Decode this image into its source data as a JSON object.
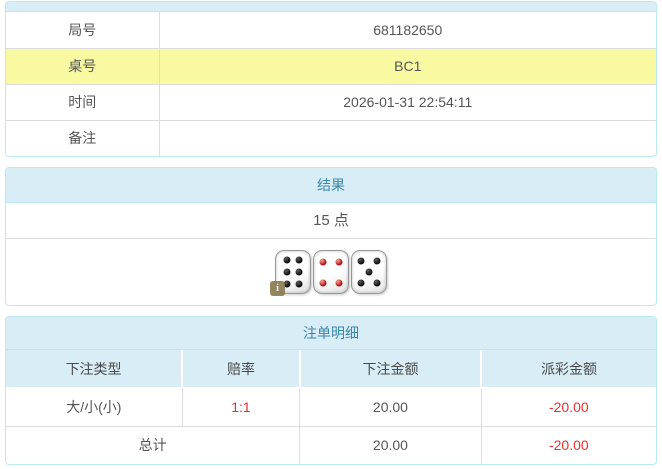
{
  "colors": {
    "accent_blue": "#3a87ad",
    "panel_border": "#bce8f1",
    "heading_bg": "#d9edf7",
    "highlight_yellow": "#f9f9a2",
    "loss_red": "#e8302e",
    "text": "#555555"
  },
  "info_table": {
    "rows": [
      {
        "label": "局号",
        "value": "681182650"
      },
      {
        "label": "桌号",
        "value": "BC1"
      },
      {
        "label": "时间",
        "value": "2026-01-31 22:54:11"
      },
      {
        "label": "备注",
        "value": ""
      }
    ]
  },
  "result_panel": {
    "title": "结果",
    "points": "15 点",
    "dice": [
      {
        "value": 6,
        "color": "black"
      },
      {
        "value": 4,
        "color": "red"
      },
      {
        "value": 5,
        "color": "black"
      }
    ],
    "info_badge": "i"
  },
  "bets_panel": {
    "title": "注单明细",
    "columns": [
      "下注类型",
      "赔率",
      "下注金额",
      "派彩金额"
    ],
    "rows": [
      {
        "type": "大/小(小)",
        "odds": "1:1",
        "amount": "20.00",
        "payout": "-20.00"
      }
    ],
    "total": {
      "label": "总计",
      "amount": "20.00",
      "payout": "-20.00"
    }
  }
}
